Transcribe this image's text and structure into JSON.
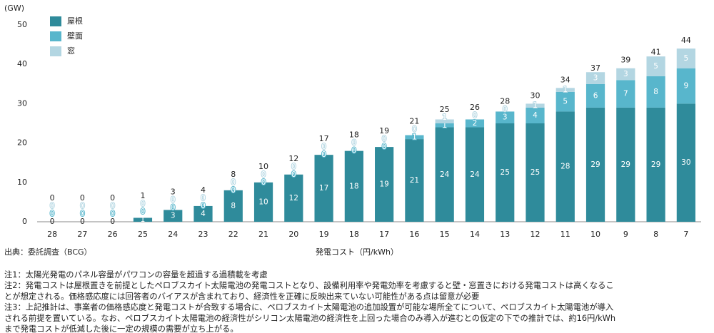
{
  "chart_data": {
    "type": "stacked-bar",
    "y_unit": "(GW)",
    "xlabel": "発電コスト（円/kWh）",
    "source": "出典：委託調査（BCG）",
    "categories": [
      "28",
      "27",
      "26",
      "25",
      "24",
      "23",
      "22",
      "21",
      "20",
      "19",
      "18",
      "17",
      "16",
      "15",
      "14",
      "13",
      "12",
      "11",
      "10",
      "9",
      "8",
      "7"
    ],
    "series": [
      {
        "name": "屋根",
        "color": "#2f8b9b",
        "values": [
          0,
          0,
          0,
          1,
          3,
          4,
          8,
          10,
          12,
          17,
          18,
          19,
          21,
          24,
          24,
          25,
          25,
          28,
          29,
          29,
          29,
          30
        ]
      },
      {
        "name": "壁面",
        "color": "#58b6cc",
        "values": [
          0,
          0,
          0,
          0,
          0,
          0,
          0,
          0,
          0,
          0,
          0,
          0,
          1,
          1,
          2,
          3,
          4,
          5,
          6,
          7,
          8,
          9
        ]
      },
      {
        "name": "窓",
        "color": "#b3d6e2",
        "values": [
          0,
          0,
          0,
          0,
          0,
          0,
          0,
          0,
          0,
          0,
          0,
          0,
          0,
          1,
          0,
          0,
          1,
          1,
          3,
          3,
          5,
          5
        ]
      }
    ],
    "totals": [
      0,
      0,
      0,
      1,
      3,
      4,
      8,
      10,
      12,
      17,
      18,
      19,
      21,
      25,
      26,
      28,
      30,
      34,
      37,
      39,
      41,
      44
    ],
    "ylim": [
      0,
      50
    ],
    "yticks": [
      0,
      10,
      20,
      30,
      40,
      50
    ],
    "grid": false,
    "notes": [
      "注1：太陽光発電のパネル容量がパワコンの容量を超過する過積載を考慮",
      "注2：発電コストは屋根置きを前提としたペロブスカイト太陽電池の発電コストとなり、設備利用率や発電効率を考慮すると壁・窓置きにおける発電コストは高くなるこ",
      "とが想定される。価格感応度には回答者のバイアスが含まれており、経済性を正確に反映出来ていない可能性がある点は留意が必要",
      "注3：上記推計は、事業者の価格感応度と発電コストが合致する場合に、ペロブスカイト太陽電池の追加設置が可能な場所全てについて、ペロブスカイト太陽電池が導入",
      "される前提を置いている。なお、ペロブスカイト太陽電池の経済性がシリコン太陽電池の経済性を上回った場合のみ導入が進むとの仮定の下での推計では、約16円/kWh",
      "まで発電コストが低減した後に一定の規模の需要が立ち上がる。"
    ]
  }
}
